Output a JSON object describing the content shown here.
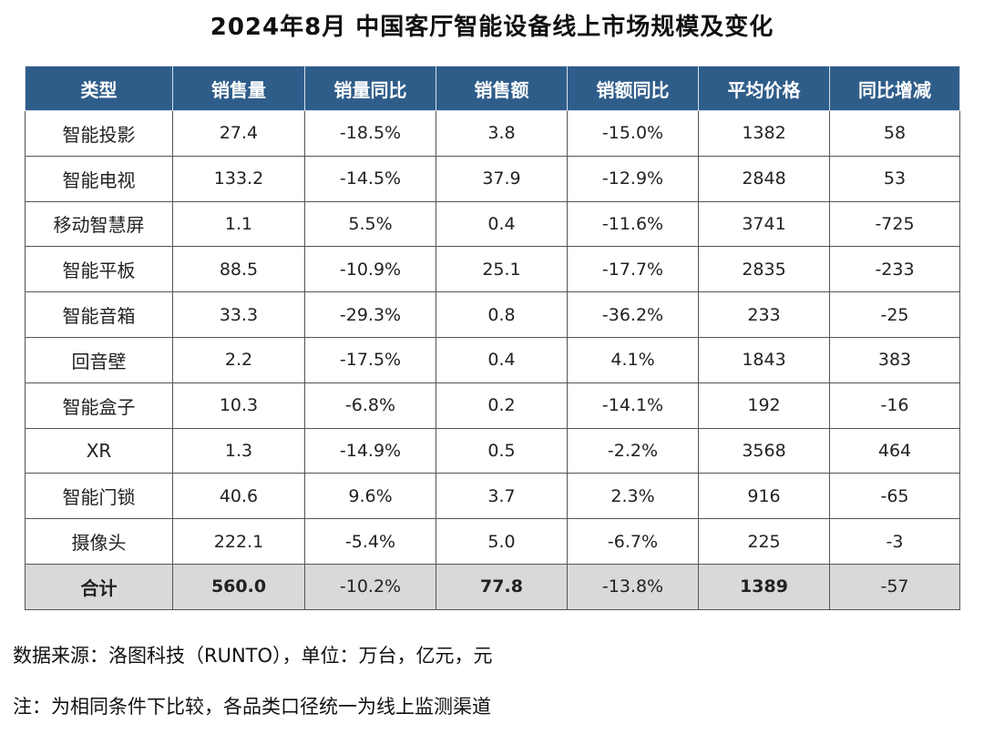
{
  "title": "2024年8月 中国客厅智能设备线上市场规模及变化",
  "chart_data": {
    "type": "table",
    "title": "2024年8月 中国客厅智能设备线上市场规模及变化",
    "columns": [
      "类型",
      "销售量",
      "销量同比",
      "销售额",
      "销额同比",
      "平均价格",
      "同比增减"
    ],
    "rows": [
      [
        "智能投影",
        "27.4",
        "-18.5%",
        "3.8",
        "-15.0%",
        "1382",
        "58"
      ],
      [
        "智能电视",
        "133.2",
        "-14.5%",
        "37.9",
        "-12.9%",
        "2848",
        "53"
      ],
      [
        "移动智慧屏",
        "1.1",
        "5.5%",
        "0.4",
        "-11.6%",
        "3741",
        "-725"
      ],
      [
        "智能平板",
        "88.5",
        "-10.9%",
        "25.1",
        "-17.7%",
        "2835",
        "-233"
      ],
      [
        "智能音箱",
        "33.3",
        "-29.3%",
        "0.8",
        "-36.2%",
        "233",
        "-25"
      ],
      [
        "回音壁",
        "2.2",
        "-17.5%",
        "0.4",
        "4.1%",
        "1843",
        "383"
      ],
      [
        "智能盒子",
        "10.3",
        "-6.8%",
        "0.2",
        "-14.1%",
        "192",
        "-16"
      ],
      [
        "XR",
        "1.3",
        "-14.9%",
        "0.5",
        "-2.2%",
        "3568",
        "464"
      ],
      [
        "智能门锁",
        "40.6",
        "9.6%",
        "3.7",
        "2.3%",
        "916",
        "-65"
      ],
      [
        "摄像头",
        "222.1",
        "-5.4%",
        "5.0",
        "-6.7%",
        "225",
        "-3"
      ]
    ],
    "total": [
      "合计",
      "560.0",
      "-10.2%",
      "77.8",
      "-13.8%",
      "1389",
      "-57"
    ]
  },
  "colors": {
    "header_bg": "#2f5d8a",
    "positive": "#d63031",
    "negative": "#2ea44f",
    "total_bg": "#d9d9d9"
  },
  "footer": {
    "source": "数据来源：洛图科技（RUNTO），单位：万台，亿元，元",
    "note": "注：为相同条件下比较，各品类口径统一为线上监测渠道"
  }
}
